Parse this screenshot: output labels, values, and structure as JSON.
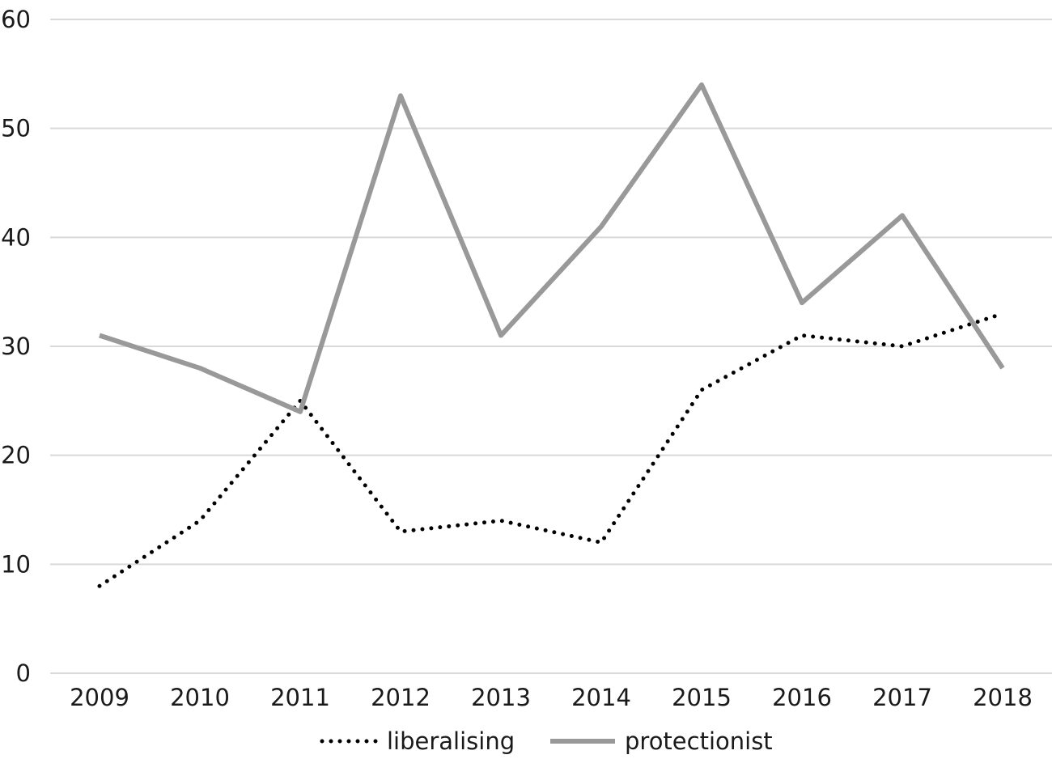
{
  "chart_data": {
    "type": "line",
    "title": "",
    "xlabel": "",
    "ylabel": "",
    "categories": [
      "2009",
      "2010",
      "2011",
      "2012",
      "2013",
      "2014",
      "2015",
      "2016",
      "2017",
      "2018"
    ],
    "y_ticks": [
      "0",
      "10",
      "20",
      "30",
      "40",
      "50",
      "60"
    ],
    "ylim": [
      0,
      60
    ],
    "grid": true,
    "legend_position": "bottom",
    "series": [
      {
        "name": "liberalising",
        "values": [
          8,
          14,
          25,
          13,
          14,
          12,
          26,
          31,
          30,
          33
        ],
        "color": "#000000",
        "style": "dotted"
      },
      {
        "name": "protectionist",
        "values": [
          31,
          28,
          24,
          53,
          31,
          41,
          54,
          34,
          42,
          28
        ],
        "color": "#999999",
        "style": "solid"
      }
    ]
  }
}
